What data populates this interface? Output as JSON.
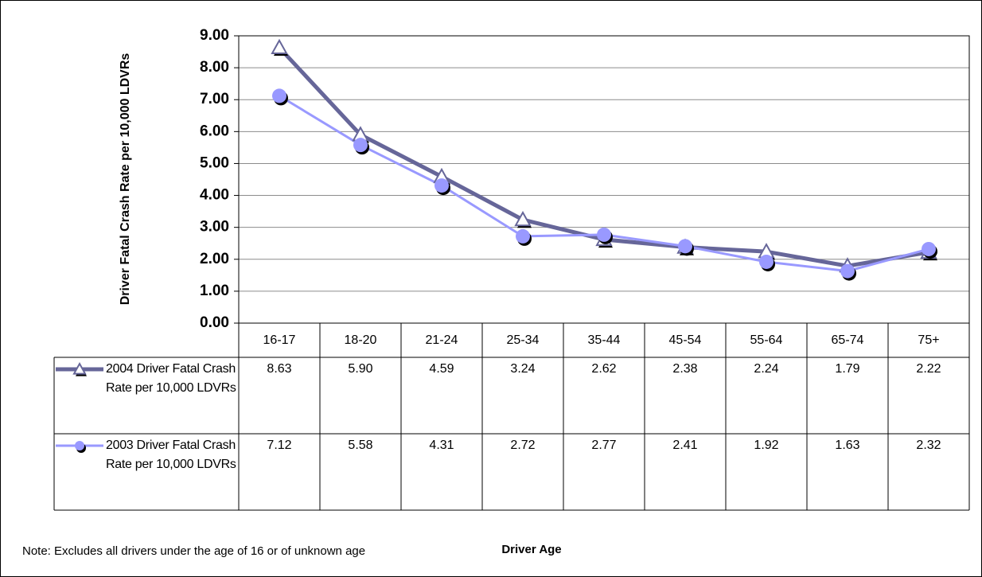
{
  "chart_data": {
    "type": "line",
    "y_label": "Driver Fatal Crash Rate per 10,000 LDVRs",
    "x_label": "Driver Age",
    "note": "Note: Excludes all drivers under the age of 16 or of unknown age",
    "categories": [
      "16-17",
      "18-20",
      "21-24",
      "25-34",
      "35-44",
      "45-54",
      "55-64",
      "65-74",
      "75+"
    ],
    "series": [
      {
        "name": "2004 Driver Fatal Crash Rate per 10,000 LDVRs",
        "color": "#666699",
        "marker": "triangle",
        "values": [
          8.63,
          5.9,
          4.59,
          3.24,
          2.62,
          2.38,
          2.24,
          1.79,
          2.22
        ],
        "value_labels": [
          "8.63",
          "5.90",
          "4.59",
          "3.24",
          "2.62",
          "2.38",
          "2.24",
          "1.79",
          "2.22"
        ]
      },
      {
        "name": "2003 Driver Fatal Crash Rate per 10,000 LDVRs",
        "color": "#9999ff",
        "marker": "circle",
        "values": [
          7.12,
          5.58,
          4.31,
          2.72,
          2.77,
          2.41,
          1.92,
          1.63,
          2.32
        ],
        "value_labels": [
          "7.12",
          "5.58",
          "4.31",
          "2.72",
          "2.77",
          "2.41",
          "1.92",
          "1.63",
          "2.32"
        ]
      }
    ],
    "ylim": [
      0,
      9
    ],
    "yticks": [
      {
        "value": 0,
        "label": "0.00"
      },
      {
        "value": 1,
        "label": "1.00"
      },
      {
        "value": 2,
        "label": "2.00"
      },
      {
        "value": 3,
        "label": "3.00"
      },
      {
        "value": 4,
        "label": "4.00"
      },
      {
        "value": 5,
        "label": "5.00"
      },
      {
        "value": 6,
        "label": "6.00"
      },
      {
        "value": 7,
        "label": "7.00"
      },
      {
        "value": 8,
        "label": "8.00"
      },
      {
        "value": 9,
        "label": "9.00"
      }
    ],
    "grid": true
  }
}
